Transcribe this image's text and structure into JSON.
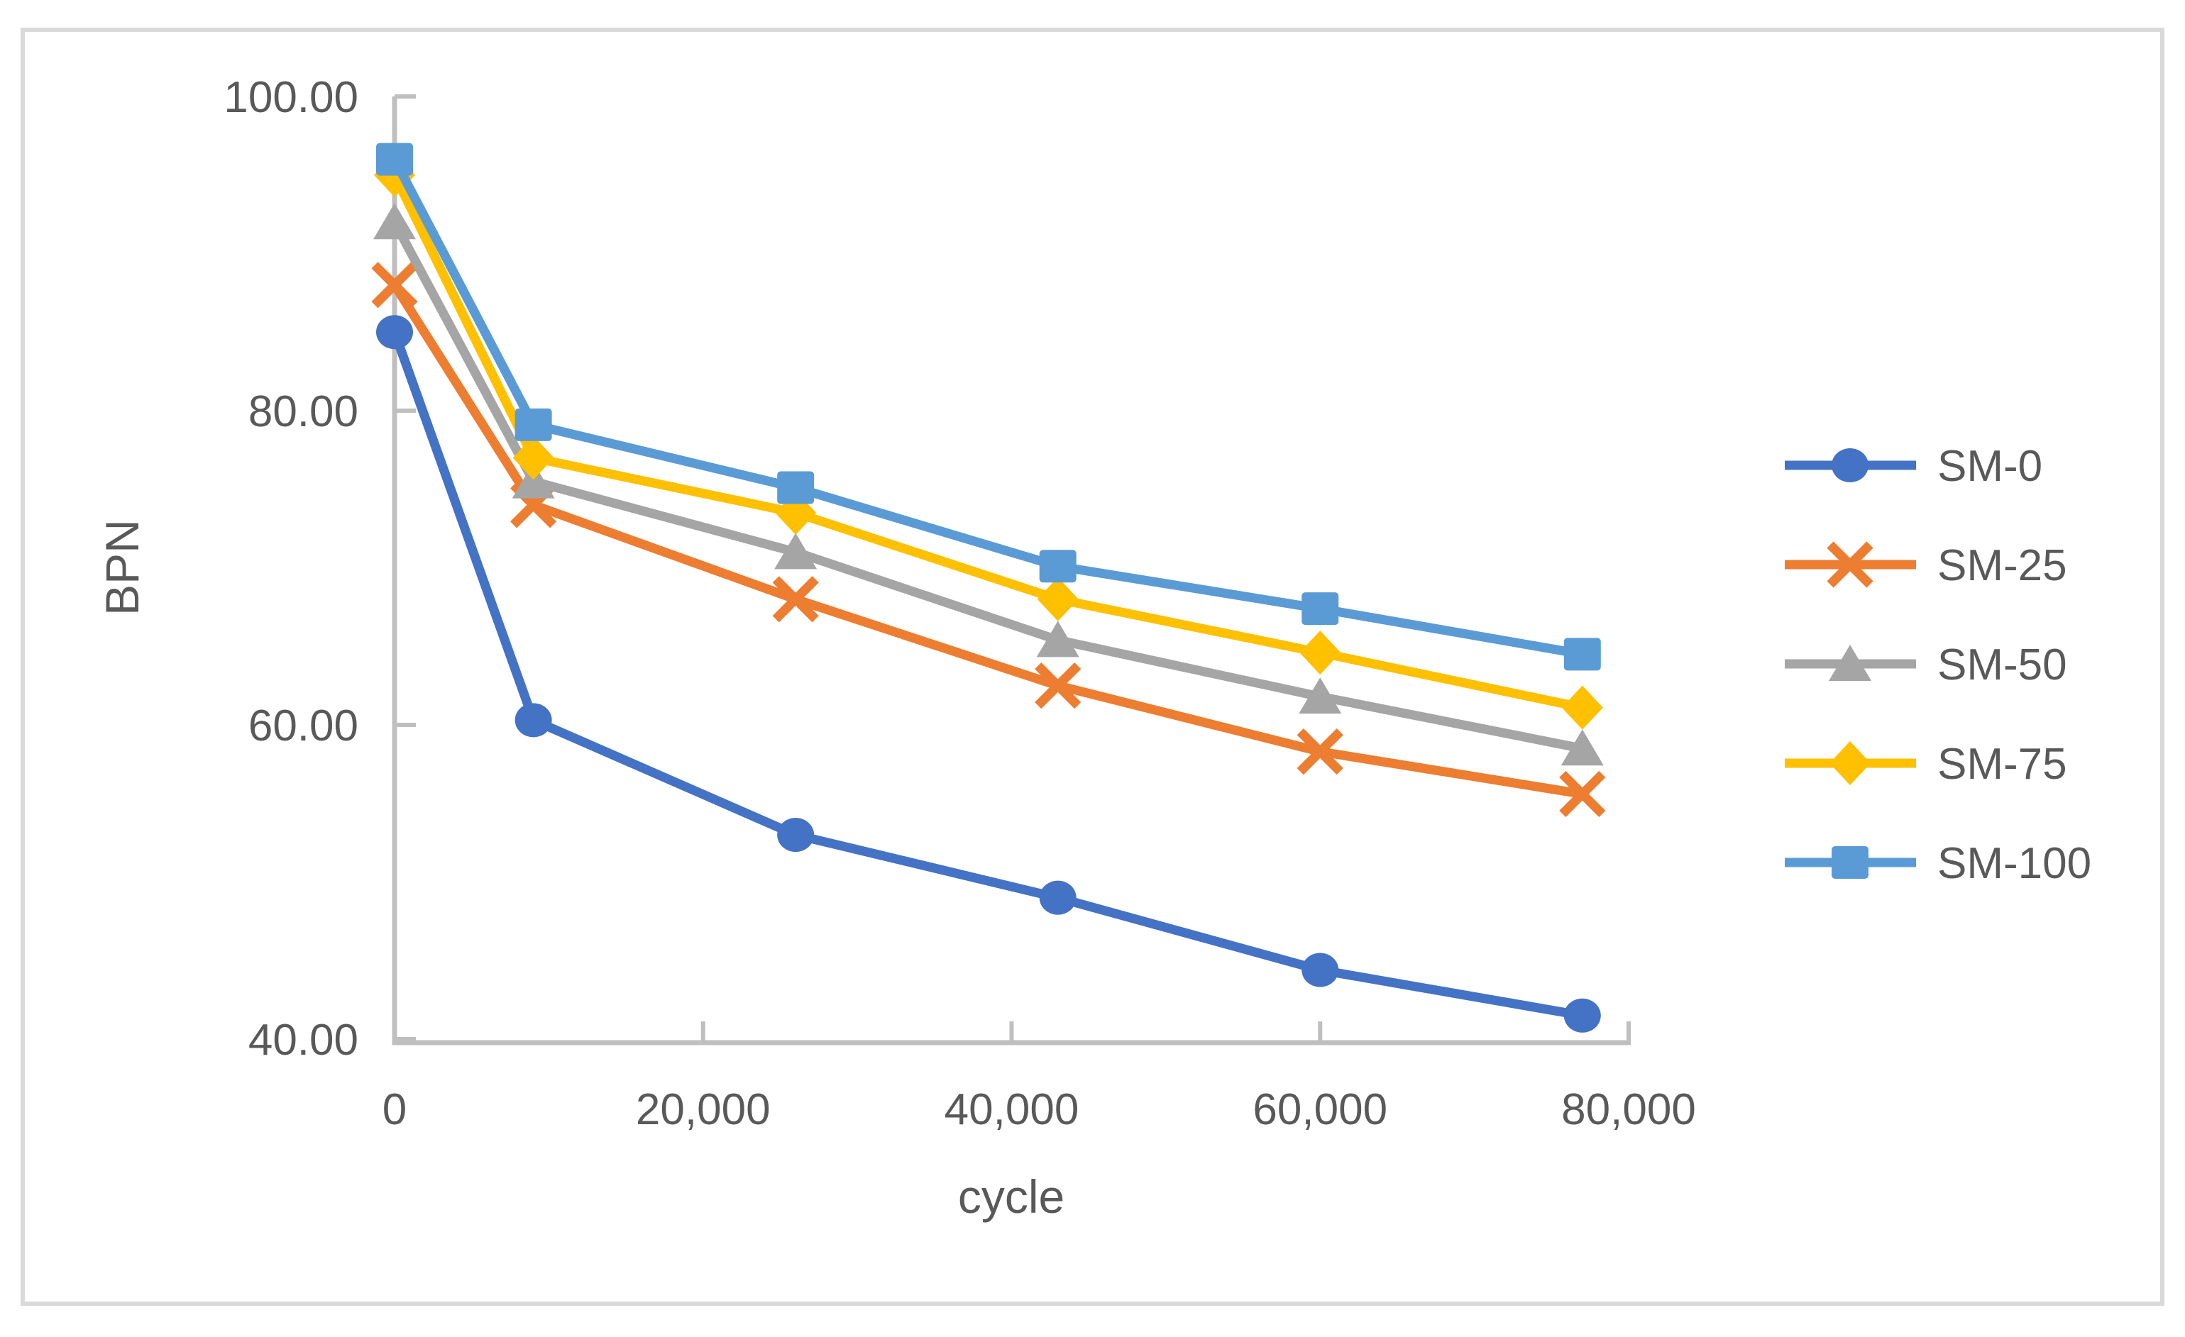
{
  "chart_data": {
    "type": "line",
    "title": "",
    "xlabel": "cycle",
    "ylabel": "BPN",
    "x": [
      0,
      9000,
      26000,
      43000,
      60000,
      77000
    ],
    "series": [
      {
        "name": "SM-0",
        "color": "#4472C4",
        "marker": "circle",
        "values": [
          85.0,
          60.3,
          53.0,
          49.0,
          44.4,
          41.5
        ]
      },
      {
        "name": "SM-25",
        "color": "#ED7D31",
        "marker": "x",
        "values": [
          88.0,
          74.0,
          68.0,
          62.5,
          58.3,
          55.6
        ]
      },
      {
        "name": "SM-50",
        "color": "#A5A5A5",
        "marker": "triangle",
        "values": [
          92.0,
          75.5,
          71.0,
          65.4,
          61.8,
          58.5
        ]
      },
      {
        "name": "SM-75",
        "color": "#FFC000",
        "marker": "diamond",
        "values": [
          95.0,
          77.0,
          73.5,
          68.0,
          64.6,
          61.1
        ]
      },
      {
        "name": "SM-100",
        "color": "#5B9BD5",
        "marker": "square",
        "values": [
          96.0,
          79.1,
          75.1,
          70.1,
          67.4,
          64.5
        ]
      }
    ],
    "xlim": [
      0,
      80000
    ],
    "ylim": [
      40,
      100
    ],
    "x_ticks": [
      {
        "value": 0,
        "label": "0"
      },
      {
        "value": 20000,
        "label": "20,000"
      },
      {
        "value": 40000,
        "label": "40,000"
      },
      {
        "value": 60000,
        "label": "60,000"
      },
      {
        "value": 80000,
        "label": "80,000"
      }
    ],
    "y_ticks": [
      {
        "value": 100,
        "label": "100.00"
      },
      {
        "value": 80,
        "label": "80.00"
      },
      {
        "value": 60,
        "label": "60.00"
      },
      {
        "value": 40,
        "label": "40.00"
      }
    ],
    "grid": false,
    "legend_position": "right",
    "legend_labels": [
      "SM-0",
      "SM-25",
      "SM-50",
      "SM-75",
      "SM-100"
    ]
  },
  "colors": {
    "text": "#595959",
    "axis_line": "#BFBFBF",
    "frame_border": "#D9D9D9",
    "background": "#FFFFFF"
  }
}
